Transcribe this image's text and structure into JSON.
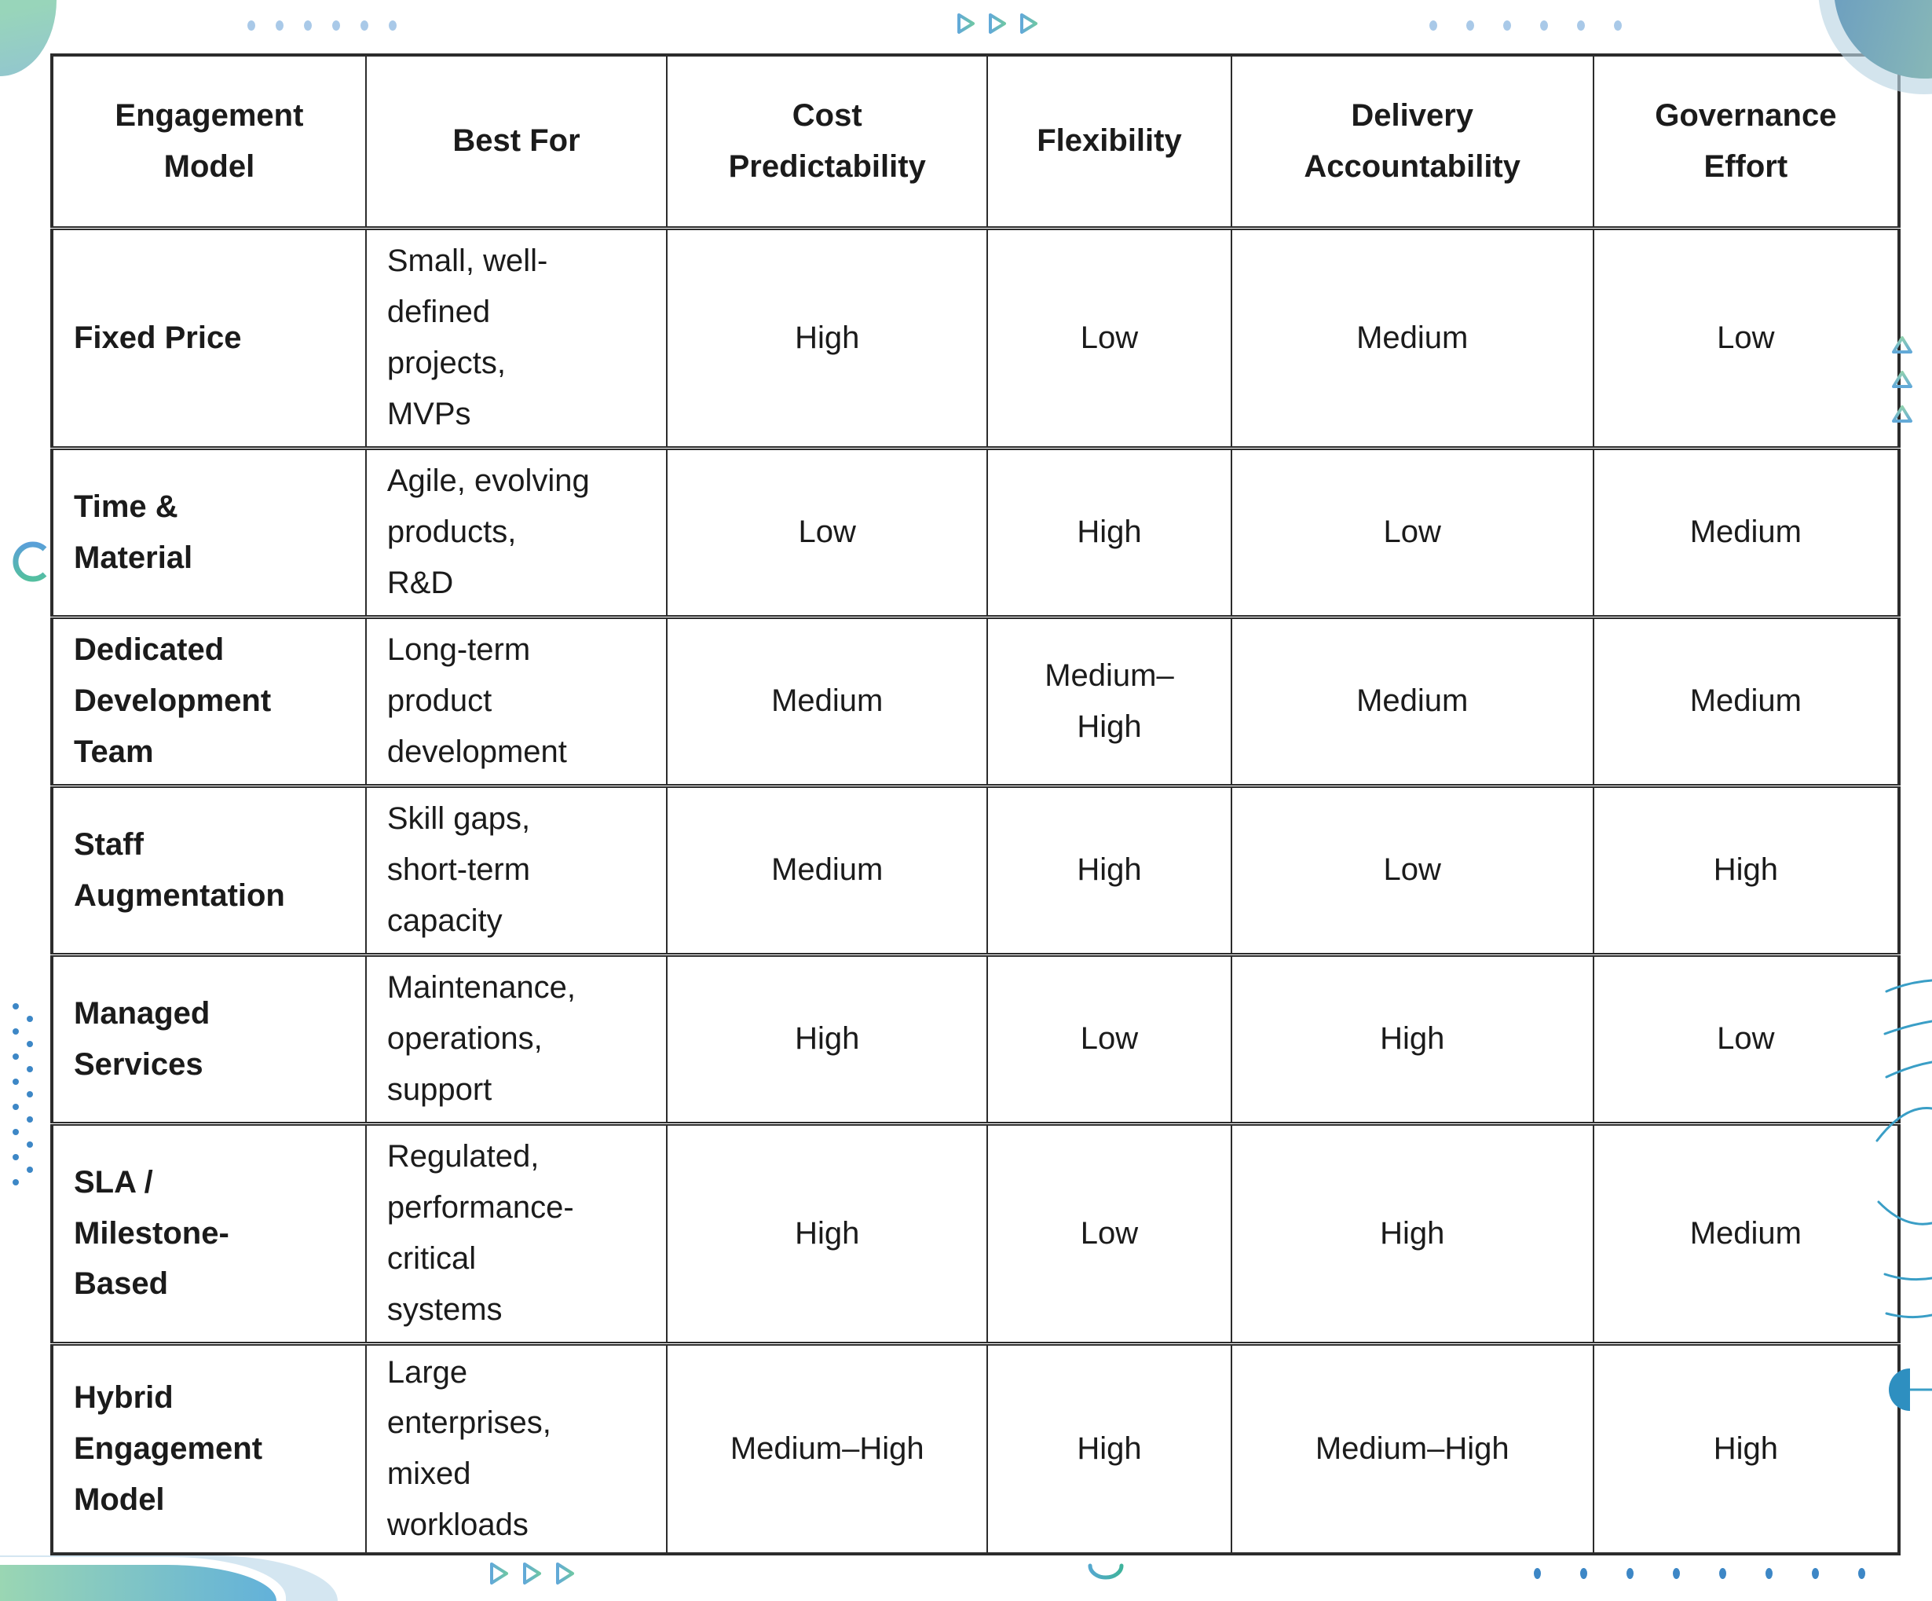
{
  "page": {
    "background": "#ffffff"
  },
  "table": {
    "columns": [
      "Engagement\nModel",
      "Best For",
      "Cost\nPredictability",
      "Flexibility",
      "Delivery\nAccountability",
      "Governance\nEffort"
    ],
    "rows": [
      {
        "model": "Fixed Price",
        "best_for": "Small, well-\ndefined\nprojects,\nMVPs",
        "cost_predictability": "High",
        "flexibility": "Low",
        "delivery_accountability": "Medium",
        "governance_effort": "Low"
      },
      {
        "model": "Time &\nMaterial",
        "best_for": "Agile, evolving\nproducts,\nR&D",
        "cost_predictability": "Low",
        "flexibility": "High",
        "delivery_accountability": "Low",
        "governance_effort": "Medium"
      },
      {
        "model": "Dedicated\nDevelopment\nTeam",
        "best_for": "Long-term\nproduct\ndevelopment",
        "cost_predictability": "Medium",
        "flexibility": "Medium–\nHigh",
        "delivery_accountability": "Medium",
        "governance_effort": "Medium"
      },
      {
        "model": "Staff\nAugmentation",
        "best_for": "Skill gaps,\nshort-term\ncapacity",
        "cost_predictability": "Medium",
        "flexibility": "High",
        "delivery_accountability": "Low",
        "governance_effort": "High"
      },
      {
        "model": "Managed\nServices",
        "best_for": "Maintenance,\noperations,\nsupport",
        "cost_predictability": "High",
        "flexibility": "Low",
        "delivery_accountability": "High",
        "governance_effort": "Low"
      },
      {
        "model": "SLA /\nMilestone-\nBased",
        "best_for": "Regulated,\nperformance-\ncritical\nsystems",
        "cost_predictability": "High",
        "flexibility": "Low",
        "delivery_accountability": "High",
        "governance_effort": "Medium"
      },
      {
        "model": "Hybrid\nEngagement\nModel",
        "best_for": "Large\nenterprises,\nmixed\nworkloads",
        "cost_predictability": "Medium–High",
        "flexibility": "High",
        "delivery_accountability": "Medium–High",
        "governance_effort": "High"
      }
    ]
  },
  "decorations": {
    "dots_top_left": {
      "count": 6,
      "color": "#a9c9e8"
    },
    "dots_top_right": {
      "count": 6,
      "color": "#a9c9e8"
    },
    "dots_bottom_right": {
      "count": 8,
      "color": "#3d87c6"
    },
    "dots_left_a": {
      "count": 8,
      "color": "#3d87c6"
    },
    "dots_left_b": {
      "count": 7,
      "color": "#3d87c6"
    },
    "triangle_groups": [
      {
        "name": "top-center",
        "count": 3,
        "direction": "right"
      },
      {
        "name": "right-edge",
        "count": 3,
        "direction": "up"
      },
      {
        "name": "bottom-left",
        "count": 3,
        "direction": "right"
      }
    ],
    "arcs": [
      "c-arc-left",
      "u-arc-bottom",
      "ripple-arcs-right"
    ],
    "blobs": [
      "top-left-mint",
      "top-right-teal",
      "bottom-left-gradient"
    ]
  },
  "colors": {
    "table_border": "#2c2c2c",
    "text": "#1b1b1b",
    "dot_light_blue": "#a9c9e8",
    "dot_blue": "#3d87c6",
    "triangle_blue": "#62a9d8",
    "triangle_green": "#6ec6a6",
    "ripple_blue": "#3a9ec6",
    "blob_mint": "#98d5ba",
    "blob_steel_blue": "#6fa1bf",
    "arc_teal": "#3fb39c"
  }
}
